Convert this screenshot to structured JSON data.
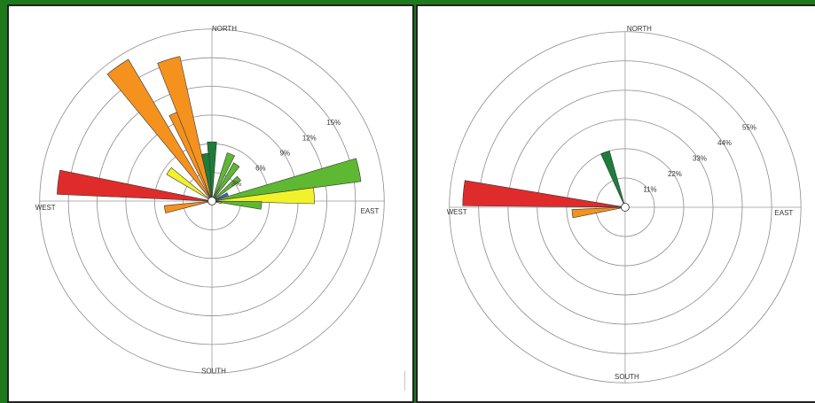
{
  "colors": {
    "dark_green": "#1e7d3a",
    "green": "#5fb832",
    "yellow": "#f2f22a",
    "orange": "#f5921e",
    "red": "#e02b2b",
    "blue": "#2f6fd6"
  },
  "chart_data": [
    {
      "type": "polar-bar",
      "title": "",
      "directions": [
        "NORTH",
        "EAST",
        "SOUTH",
        "WEST"
      ],
      "ring_labels": [
        "3%",
        "6%",
        "9%",
        "12%",
        "15%"
      ],
      "rmax": 18,
      "grid": true,
      "sectors": [
        {
          "dir": 0,
          "value": 6.2,
          "color": "dark_green"
        },
        {
          "dir": 22,
          "value": 5.3,
          "color": "green"
        },
        {
          "dir": 34,
          "value": 4.6,
          "color": "green"
        },
        {
          "dir": 50,
          "value": 3.7,
          "color": "green"
        },
        {
          "dir": 78,
          "value": 15.7,
          "color": "green"
        },
        {
          "dir": 66,
          "value": 1.8,
          "color": "blue"
        },
        {
          "dir": 87,
          "value": 10.7,
          "color": "yellow"
        },
        {
          "dir": 95,
          "value": 5.2,
          "color": "green"
        },
        {
          "dir": 100,
          "value": 1.0,
          "color": "yellow"
        },
        {
          "dir": 260,
          "value": 5.0,
          "color": "orange"
        },
        {
          "dir": 277,
          "value": 16.2,
          "color": "red"
        },
        {
          "dir": 305,
          "value": 5.5,
          "color": "yellow"
        },
        {
          "dir": 325,
          "value": 17.2,
          "color": "orange"
        },
        {
          "dir": 338,
          "value": 10.0,
          "color": "orange"
        },
        {
          "dir": 343,
          "value": 15.5,
          "color": "orange"
        },
        {
          "dir": 352,
          "value": 5.0,
          "color": "dark_green"
        }
      ]
    },
    {
      "type": "polar-bar",
      "title": "",
      "directions": [
        "NORTH",
        "EAST",
        "SOUTH",
        "WEST"
      ],
      "ring_labels": [
        "11%",
        "22%",
        "33%",
        "44%",
        "55%"
      ],
      "rmax": 66,
      "grid": true,
      "sectors": [
        {
          "dir": 340,
          "value": 22,
          "color": "dark_green"
        },
        {
          "dir": 275,
          "value": 61,
          "color": "red"
        },
        {
          "dir": 263,
          "value": 20,
          "color": "orange"
        }
      ]
    }
  ]
}
